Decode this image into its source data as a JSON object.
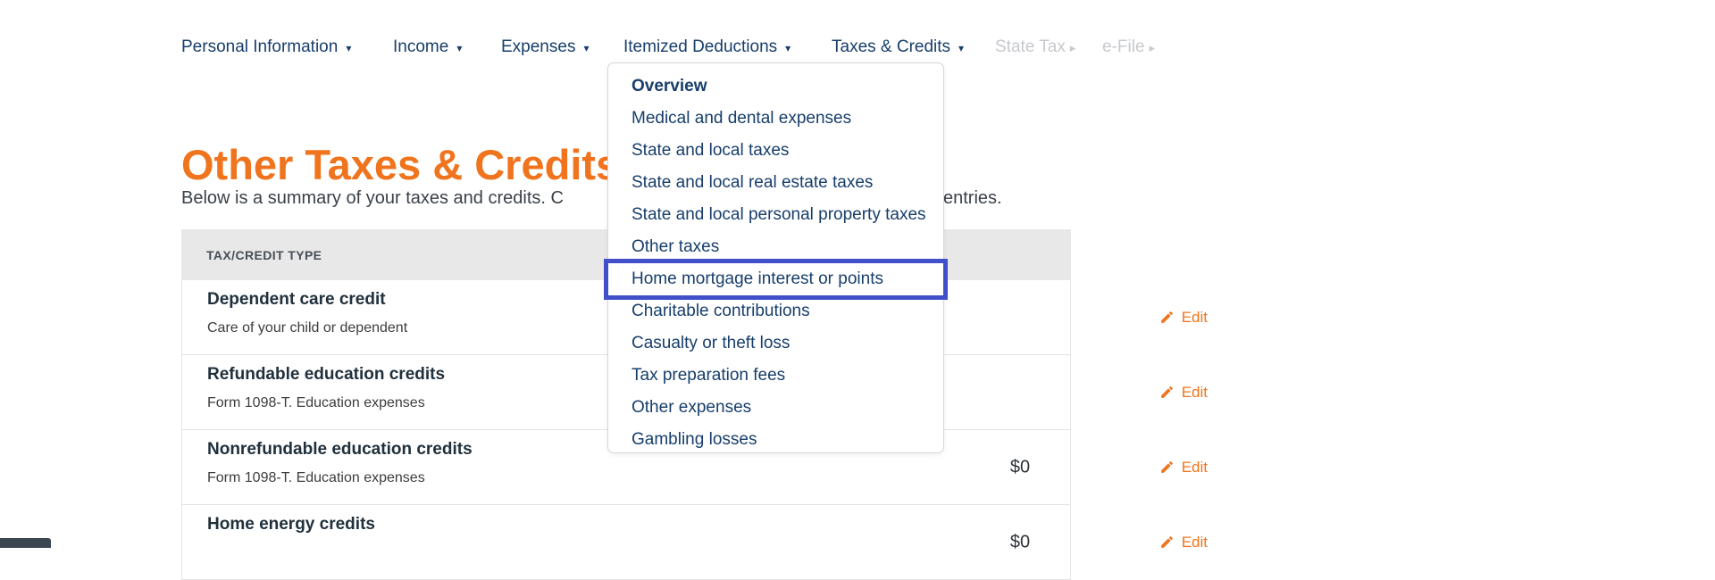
{
  "nav": {
    "items": [
      {
        "label": "Personal Information",
        "caret": "down",
        "disabled": false
      },
      {
        "label": "Income",
        "caret": "down",
        "disabled": false
      },
      {
        "label": "Expenses",
        "caret": "down",
        "disabled": false
      },
      {
        "label": "Itemized Deductions",
        "caret": "down",
        "disabled": false,
        "open": true
      },
      {
        "label": "Taxes & Credits",
        "caret": "down",
        "disabled": false
      },
      {
        "label": "State Tax",
        "caret": "right",
        "disabled": true
      },
      {
        "label": "e-File",
        "caret": "right",
        "disabled": true
      }
    ]
  },
  "dropdown": {
    "parent": "Itemized Deductions",
    "highlighted_index": 6,
    "items": [
      {
        "label": "Overview",
        "bold": true
      },
      {
        "label": "Medical and dental expenses",
        "bold": false
      },
      {
        "label": "State and local taxes",
        "bold": false
      },
      {
        "label": "State and local real estate taxes",
        "bold": false
      },
      {
        "label": "State and local personal property taxes",
        "bold": false
      },
      {
        "label": "Other taxes",
        "bold": false
      },
      {
        "label": "Home mortgage interest or points",
        "bold": false,
        "highlighted": true
      },
      {
        "label": "Charitable contributions",
        "bold": false
      },
      {
        "label": "Casualty or theft loss",
        "bold": false
      },
      {
        "label": "Tax preparation fees",
        "bold": false
      },
      {
        "label": "Other expenses",
        "bold": false
      },
      {
        "label": "Gambling losses",
        "bold": false
      }
    ]
  },
  "page": {
    "title": "Other Taxes & Credits",
    "intro_left": "Below is a summary of your taxes and credits. C",
    "intro_right": "entries."
  },
  "table": {
    "header": "TAX/CREDIT TYPE",
    "edit_label": "Edit",
    "rows": [
      {
        "title": "Dependent care credit",
        "subtitle": "Care of your child or dependent",
        "amount": "",
        "edit": "Edit"
      },
      {
        "title": "Refundable education credits",
        "subtitle": "Form 1098-T. Education expenses",
        "amount": "",
        "edit": "Edit"
      },
      {
        "title": "Nonrefundable education credits",
        "subtitle": "Form 1098-T. Education expenses",
        "amount": "$0",
        "edit": "Edit"
      },
      {
        "title": "Home energy credits",
        "subtitle": "",
        "amount": "$0",
        "edit": "Edit"
      }
    ]
  },
  "colors": {
    "nav_navy": "#173e6b",
    "disabled_gray": "#c7c9cd",
    "accent_orange": "#f0741e",
    "highlight_border_blue": "#4150c8",
    "header_bg": "#e8e8e8"
  }
}
